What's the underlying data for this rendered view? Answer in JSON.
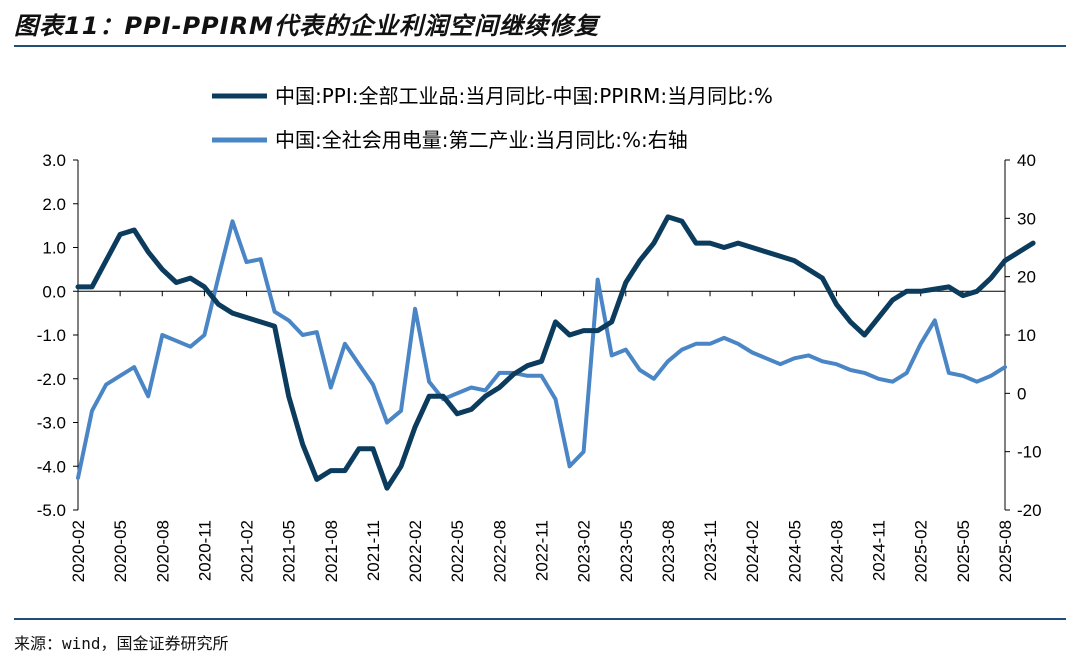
{
  "header": {
    "title": "图表11：PPI-PPIRM代表的企业利润空间继续修复"
  },
  "footer": {
    "source": "来源：wind，国金证券研究所"
  },
  "chart_data": {
    "type": "line",
    "legend_placement": "top",
    "grid": false,
    "x_ticks": [
      "2020-02",
      "2020-05",
      "2020-08",
      "2020-11",
      "2021-02",
      "2021-05",
      "2021-08",
      "2021-11",
      "2022-02",
      "2022-05",
      "2022-08",
      "2022-11",
      "2023-02",
      "2023-05",
      "2023-08",
      "2023-11",
      "2024-02",
      "2024-05",
      "2024-08",
      "2024-11",
      "2025-02",
      "2025-05",
      "2025-08"
    ],
    "y_left": {
      "min": -5.0,
      "max": 3.0,
      "step": 1.0,
      "ticks": [
        "3.0",
        "2.0",
        "1.0",
        "0.0",
        "-1.0",
        "-2.0",
        "-3.0",
        "-4.0",
        "-5.0"
      ]
    },
    "y_right": {
      "min": -20,
      "max": 40,
      "step": 10,
      "ticks": [
        "40",
        "30",
        "20",
        "10",
        "0",
        "-10",
        "-20"
      ]
    },
    "series": [
      {
        "name": "中国:PPI:全部工业品:当月同比-中国:PPIRM:当月同比:%",
        "axis": "left",
        "color": "#0b3c5d",
        "start": "2020-02",
        "values": [
          0.1,
          0.1,
          0.7,
          1.3,
          1.4,
          0.9,
          0.5,
          0.2,
          0.3,
          0.1,
          -0.3,
          -0.5,
          -0.6,
          -0.7,
          -0.8,
          -2.4,
          -3.5,
          -4.3,
          -4.1,
          -4.1,
          -3.6,
          -3.6,
          -4.5,
          -4.0,
          -3.1,
          -2.4,
          -2.4,
          -2.8,
          -2.7,
          -2.4,
          -2.2,
          -1.9,
          -1.7,
          -1.6,
          -0.7,
          -1.0,
          -0.9,
          -0.9,
          -0.7,
          0.2,
          0.7,
          1.1,
          1.7,
          1.6,
          1.1,
          1.1,
          1.0,
          1.1,
          1.0,
          0.9,
          0.8,
          0.7,
          0.5,
          0.3,
          -0.3,
          -0.7,
          -1.0,
          -0.6,
          -0.2,
          0.0,
          0.0,
          0.05,
          0.1,
          -0.1,
          0.0,
          0.3,
          0.7,
          0.9,
          1.1
        ]
      },
      {
        "name": "中国:全社会用电量:第二产业:当月同比:%:右轴",
        "axis": "right",
        "color": "#4a86c5",
        "start": "2020-02",
        "values": [
          -14.5,
          -3.0,
          1.5,
          3.0,
          4.5,
          -0.5,
          10.0,
          9.0,
          8.0,
          10.0,
          20.0,
          29.5,
          22.5,
          23.0,
          14.0,
          12.5,
          10.0,
          10.5,
          1.0,
          8.5,
          5.0,
          1.5,
          -5.0,
          -3.0,
          14.5,
          2.0,
          -1.0,
          0.0,
          1.0,
          0.5,
          3.5,
          3.5,
          3.0,
          3.0,
          -1.0,
          -12.5,
          -10.0,
          19.5,
          6.5,
          7.5,
          4.0,
          2.5,
          5.5,
          7.5,
          8.5,
          8.5,
          9.5,
          8.5,
          7.0,
          6.0,
          5.0,
          6.0,
          6.5,
          5.5,
          5.0,
          4.0,
          3.5,
          2.5,
          2.0,
          3.5,
          8.5,
          12.5,
          3.5,
          3.0,
          2.0,
          3.0,
          4.5
        ]
      }
    ]
  }
}
